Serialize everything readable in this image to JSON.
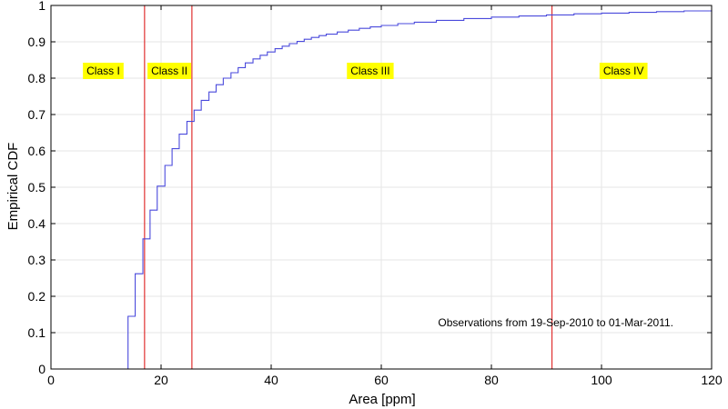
{
  "chart_data": {
    "type": "line",
    "xlabel": "Area [ppm]",
    "ylabel": "Empirical CDF",
    "xlim": [
      0,
      120
    ],
    "ylim": [
      0,
      1
    ],
    "xticks": [
      0,
      20,
      40,
      60,
      80,
      100,
      120
    ],
    "yticks": [
      0,
      0.1,
      0.2,
      0.3,
      0.4,
      0.5,
      0.6,
      0.7,
      0.8,
      0.9,
      1
    ],
    "grid": true,
    "series": [
      {
        "style": "stairs",
        "color": "#4a4adc",
        "x": [
          14,
          15.3,
          16.7,
          18,
          19.3,
          20.7,
          22,
          23.3,
          24.7,
          26,
          27.3,
          28.7,
          30,
          31.3,
          32.7,
          34,
          35.3,
          36.7,
          38,
          39.3,
          40.7,
          42,
          43.3,
          44.7,
          46,
          47.3,
          48.7,
          50,
          52,
          54,
          56,
          58,
          60,
          63,
          66,
          70,
          75,
          80,
          85,
          90,
          95,
          100,
          105,
          110,
          115,
          120
        ],
        "y": [
          0.145,
          0.262,
          0.358,
          0.437,
          0.503,
          0.56,
          0.606,
          0.646,
          0.681,
          0.712,
          0.739,
          0.762,
          0.782,
          0.8,
          0.815,
          0.829,
          0.842,
          0.853,
          0.863,
          0.872,
          0.881,
          0.888,
          0.895,
          0.901,
          0.907,
          0.912,
          0.917,
          0.921,
          0.927,
          0.932,
          0.937,
          0.941,
          0.945,
          0.95,
          0.954,
          0.959,
          0.964,
          0.968,
          0.971,
          0.974,
          0.977,
          0.979,
          0.981,
          0.983,
          0.985,
          0.987
        ]
      }
    ],
    "thresholds": {
      "color": "#e03030",
      "x": [
        17,
        25.6,
        91
      ]
    },
    "class_labels": {
      "background": "#ffff00",
      "y": 0.82,
      "items": [
        {
          "text": "Class I",
          "x": 9.5
        },
        {
          "text": "Class II",
          "x": 21.5
        },
        {
          "text": "Class III",
          "x": 58
        },
        {
          "text": "Class IV",
          "x": 104
        }
      ]
    },
    "annotation": "Observations from 19-Sep-2010 to 01-Mar-2011."
  }
}
